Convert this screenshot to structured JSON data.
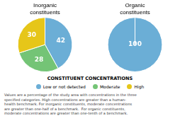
{
  "chart_data": [
    {
      "type": "pie",
      "title": "Inorganic\nconstituents",
      "categories": [
        "Low or not detected",
        "Moderate",
        "High"
      ],
      "values": [
        42,
        28,
        30
      ],
      "colors": [
        "#6baed6",
        "#74c476",
        "#e6c619"
      ],
      "data_labels": true,
      "legend": "bottom",
      "annotations": [
        "CONSTITUENT CONCENTRATIONS",
        "Values are a percentage of the study area with concentrations in the three\nspecified categories. High concentrations are greater than a human-\nhealth benchmark. For inorganic constituents, moderate concentrations\nare greater than one-half of a benchmark.  For organic constituents,\nmoderate concentrations are greater than one-tenth of a benchmark."
      ]
    },
    {
      "type": "pie",
      "title": "Organic\nconstituents",
      "categories": [
        "Low or not detected"
      ],
      "values": [
        100
      ],
      "colors": [
        "#6baed6"
      ],
      "data_labels": true
    }
  ]
}
